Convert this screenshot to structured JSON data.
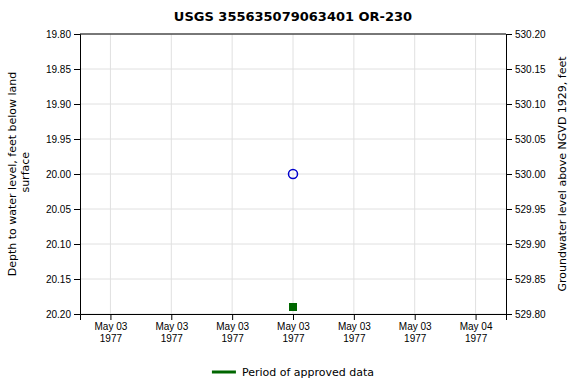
{
  "chart_data": {
    "type": "scatter",
    "title": "USGS 355635079063401 OR-230",
    "categories": [
      "May 03\n1977",
      "May 03\n1977",
      "May 03\n1977",
      "May 03\n1977",
      "May 03\n1977",
      "May 03\n1977",
      "May 04\n1977"
    ],
    "y_label": "Depth to water level, feet below land\n surface",
    "y2_label": "Groundwater level above NGVD 1929, feet",
    "ylim": [
      20.2,
      19.8
    ],
    "yticks": [
      {
        "value": 19.8,
        "label": "19.80"
      },
      19.85,
      {
        "value": 19.9,
        "label": "19.90"
      },
      19.95,
      {
        "value": 20.0,
        "label": "20.00"
      },
      20.05,
      {
        "value": 20.1,
        "label": "20.10"
      },
      20.15,
      {
        "value": 20.2,
        "label": "20.20"
      }
    ],
    "y2lim": [
      529.8,
      530.2
    ],
    "y2ticks": [
      {
        "value": 530.2,
        "label": "530.20"
      },
      530.15,
      {
        "value": 530.1,
        "label": "530.10"
      },
      530.05,
      {
        "value": 530.0,
        "label": "530.00"
      },
      529.95,
      {
        "value": 529.9,
        "label": "529.90"
      },
      529.85,
      {
        "value": 529.8,
        "label": "529.80"
      }
    ],
    "grid": true,
    "legend": "bottom",
    "series": [
      {
        "color": "#0000cc",
        "marker": "circle-open",
        "values": [
          null,
          null,
          null,
          20.0,
          null,
          null,
          null
        ]
      },
      {
        "name": "Period of approved data",
        "color": "#006600",
        "marker": "square",
        "values": [
          null,
          null,
          null,
          20.19,
          null,
          null,
          null
        ]
      }
    ]
  }
}
